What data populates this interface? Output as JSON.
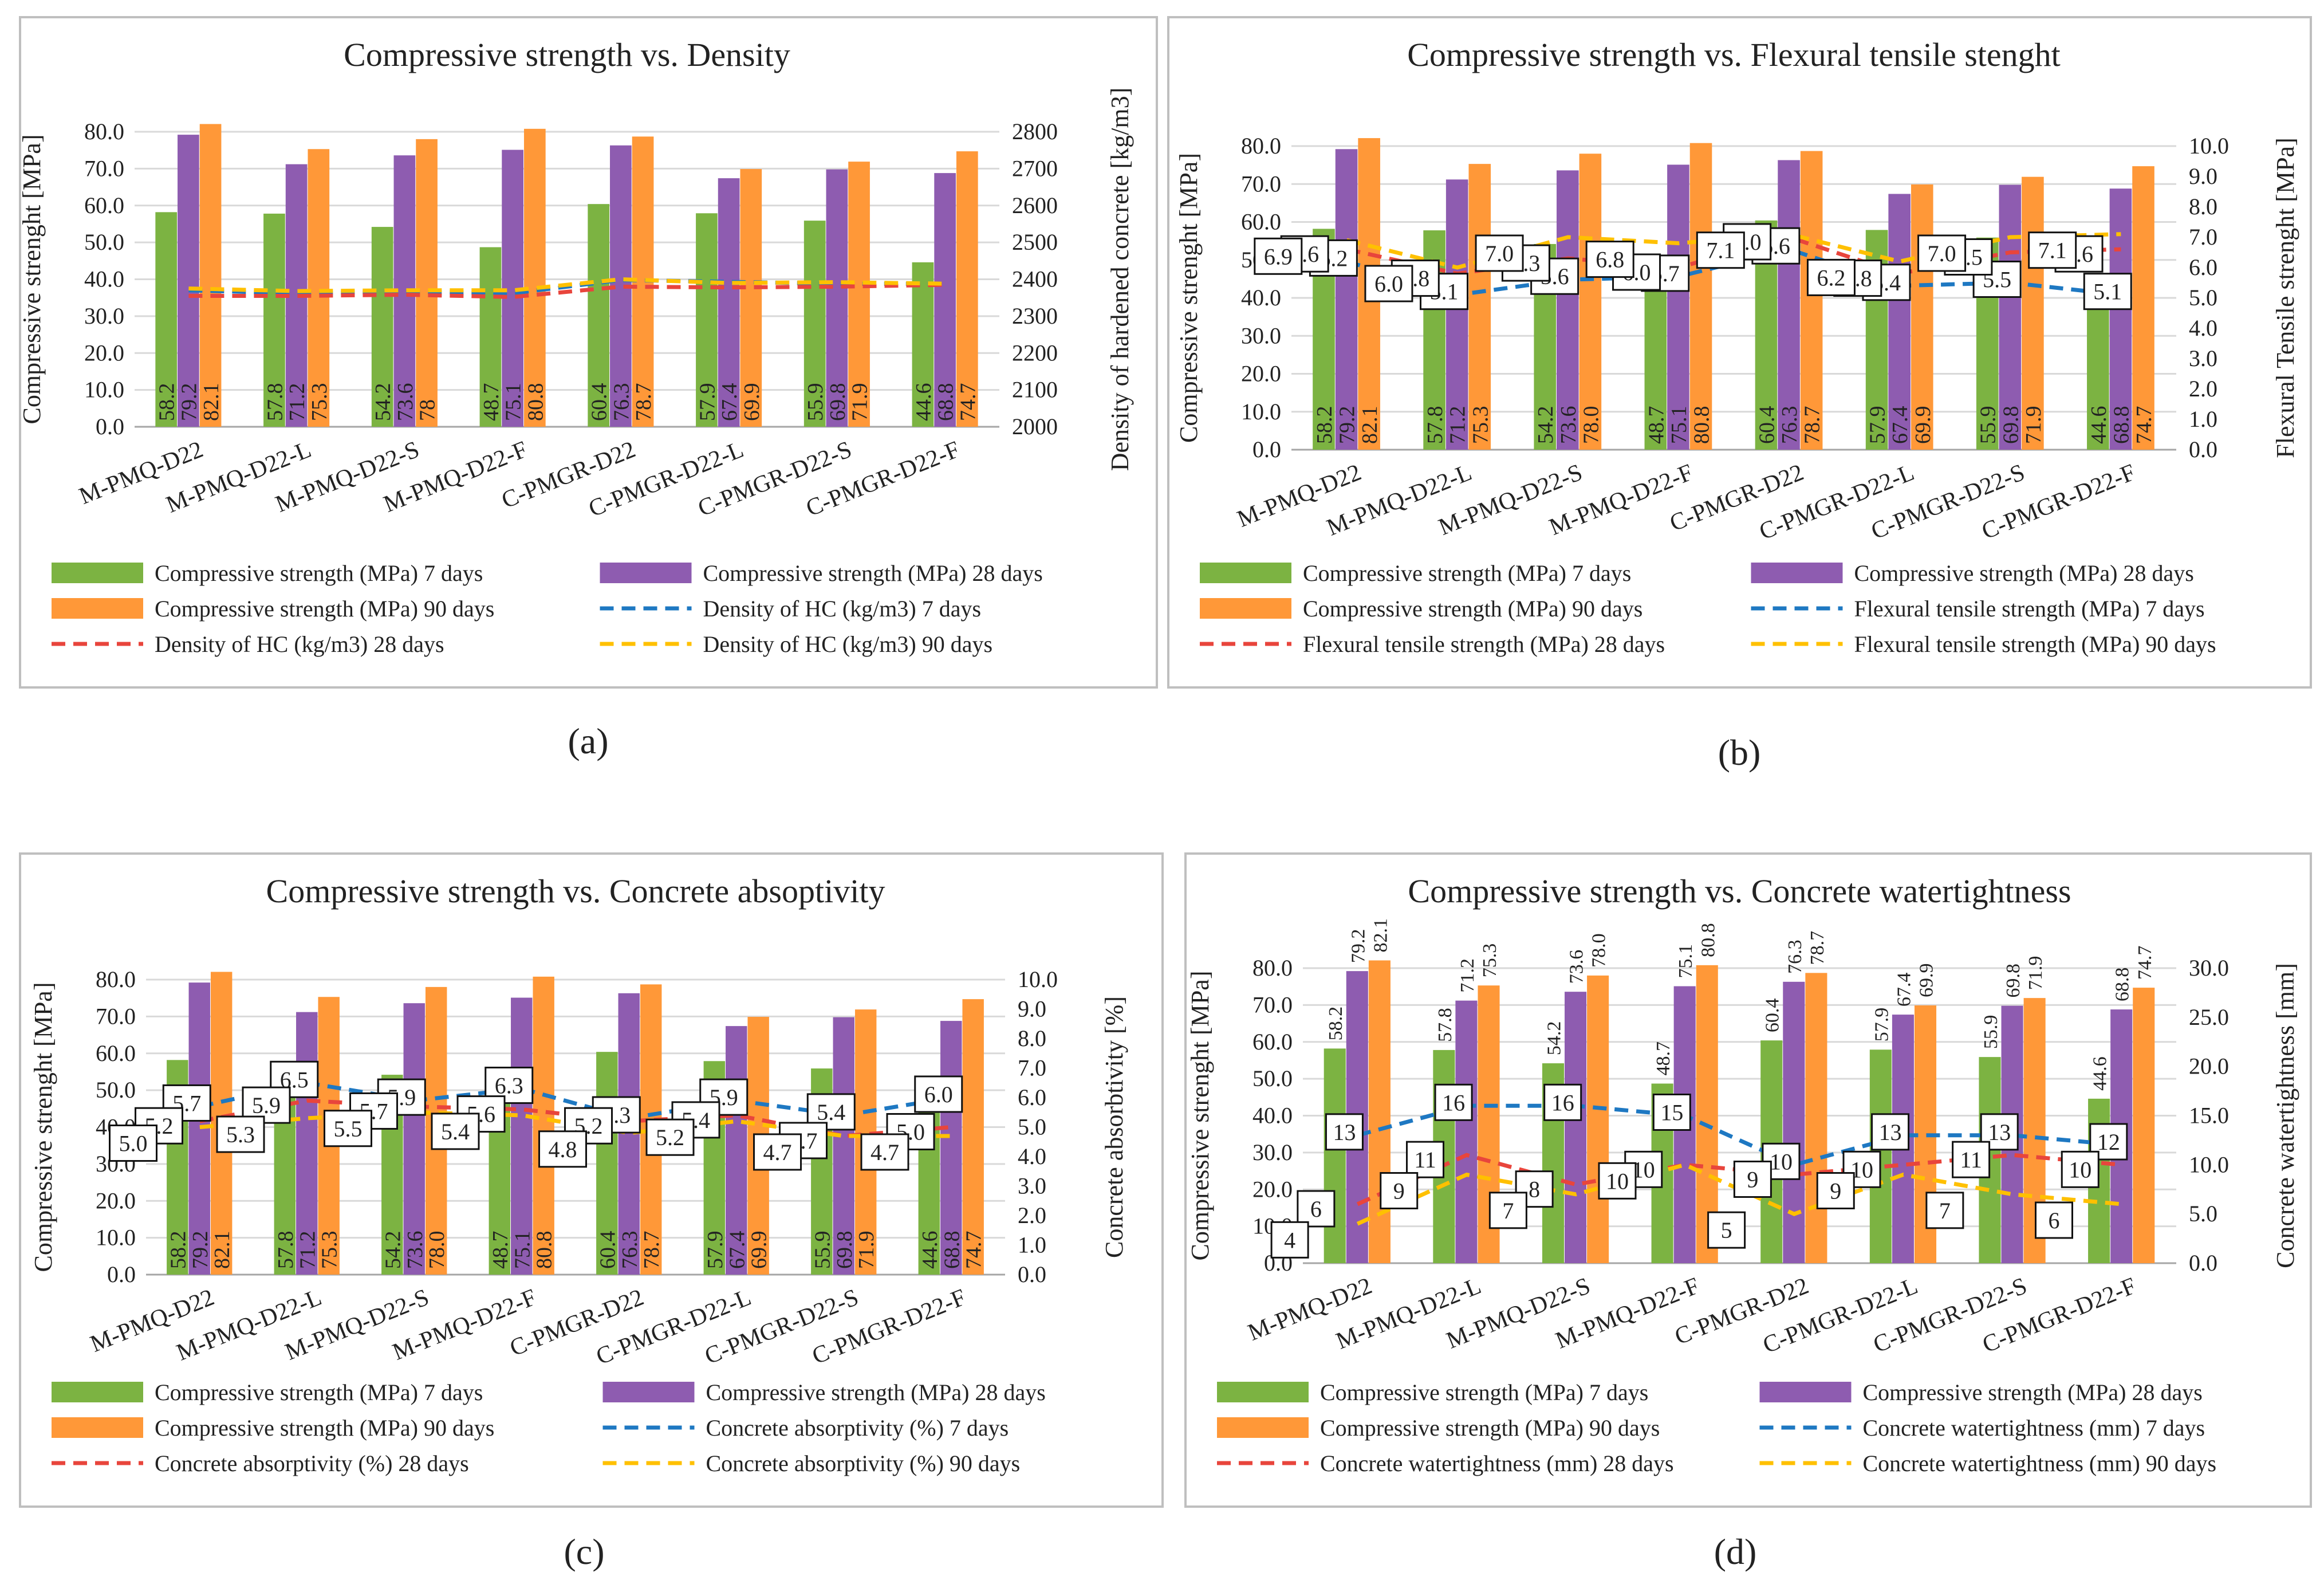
{
  "colors": {
    "green": "#7CB342",
    "purple": "#8E5CB0",
    "orange": "#FF9838",
    "blue": "#1E78C2",
    "red": "#E8453C",
    "yellow": "#FFC000",
    "grid": "#D9D9D9",
    "frame": "#BFBFBF",
    "text": "#222222"
  },
  "chart_data": [
    {
      "panel": "(a)",
      "type": "bar",
      "title": "Compressive strength vs. Density",
      "categories": [
        "M-PMQ-D22",
        "M-PMQ-D22-L",
        "M-PMQ-D22-S",
        "M-PMQ-D22-F",
        "C-PMGR-D22",
        "C-PMGR-D22-L",
        "C-PMGR-D22-S",
        "C-PMGR-D22-F"
      ],
      "ylabel": "Compressive strenght [MPa]",
      "y2label": "Density of hardened concrete [kg/m3]",
      "ylim": [
        0,
        80
      ],
      "ystep": 10,
      "ydecimals": 1,
      "y2lim": [
        2000,
        2800
      ],
      "y2step": 100,
      "y2decimals": 0,
      "bar_series": [
        {
          "name": "Compressive strength (MPa) 7 days",
          "color": "green",
          "values": [
            58.2,
            57.8,
            54.2,
            48.7,
            60.4,
            57.9,
            55.9,
            44.6
          ],
          "labels": [
            "58.2",
            "57.8",
            "54.2",
            "48.7",
            "60.4",
            "57.9",
            "55.9",
            "44.6"
          ]
        },
        {
          "name": "Compressive strength (MPa) 28 days",
          "color": "purple",
          "values": [
            79.2,
            71.2,
            73.6,
            75.1,
            76.3,
            67.4,
            69.8,
            68.8
          ],
          "labels": [
            "79.2",
            "71.2",
            "73.6",
            "75.1",
            "76.3",
            "67.4",
            "69.8",
            "68.8"
          ]
        },
        {
          "name": "Compressive strength (MPa) 90 days",
          "color": "orange",
          "values": [
            82.1,
            75.3,
            78.0,
            80.8,
            78.7,
            69.9,
            71.9,
            74.7
          ],
          "labels": [
            "82.1",
            "75.3",
            "78",
            "80.8",
            "78.7",
            "69.9",
            "71.9",
            "74.7"
          ]
        }
      ],
      "bar_label_mode": "inside",
      "line_series": [
        {
          "name": "Density of HC (kg/m3) 7 days",
          "color": "blue",
          "values": [
            2370,
            2362,
            2366,
            2362,
            2398,
            2393,
            2388,
            2388
          ],
          "labels": []
        },
        {
          "name": "Density of HC (kg/m3) 28 days",
          "color": "red",
          "values": [
            2355,
            2355,
            2358,
            2352,
            2380,
            2378,
            2380,
            2385
          ],
          "labels": []
        },
        {
          "name": "Density of HC (kg/m3) 90 days",
          "color": "yellow",
          "values": [
            2375,
            2368,
            2370,
            2370,
            2400,
            2390,
            2392,
            2388
          ],
          "labels": []
        }
      ],
      "legend_placement": "bottom",
      "grid": true
    },
    {
      "panel": "(b)",
      "type": "bar",
      "title": "Compressive strength vs. Flexural tensile stenght",
      "categories": [
        "M-PMQ-D22",
        "M-PMQ-D22-L",
        "M-PMQ-D22-S",
        "M-PMQ-D22-F",
        "C-PMGR-D22",
        "C-PMGR-D22-L",
        "C-PMGR-D22-S",
        "C-PMGR-D22-F"
      ],
      "ylabel": "Compressive strenght [MPa]",
      "y2label": "Flexural Tensile strenght [MPa]",
      "ylim": [
        0,
        80
      ],
      "ystep": 10,
      "ydecimals": 1,
      "y2lim": [
        0,
        10
      ],
      "y2step": 1,
      "y2decimals": 1,
      "bar_series": [
        {
          "name": "Compressive strength (MPa) 7 days",
          "color": "green",
          "values": [
            58.2,
            57.8,
            54.2,
            48.7,
            60.4,
            57.9,
            55.9,
            44.6
          ],
          "labels": [
            "58.2",
            "57.8",
            "54.2",
            "48.7",
            "60.4",
            "57.9",
            "55.9",
            "44.6"
          ]
        },
        {
          "name": "Compressive strength (MPa) 28 days",
          "color": "purple",
          "values": [
            79.2,
            71.2,
            73.6,
            75.1,
            76.3,
            67.4,
            69.8,
            68.8
          ],
          "labels": [
            "79.2",
            "71.2",
            "73.6",
            "75.1",
            "76.3",
            "67.4",
            "69.8",
            "68.8"
          ]
        },
        {
          "name": "Compressive strength (MPa) 90 days",
          "color": "orange",
          "values": [
            82.1,
            75.3,
            78.0,
            80.8,
            78.7,
            69.9,
            71.9,
            74.7
          ],
          "labels": [
            "82.1",
            "75.3",
            "78.0",
            "80.8",
            "78.7",
            "69.9",
            "71.9",
            "74.7"
          ]
        }
      ],
      "bar_label_mode": "inside",
      "line_series": [
        {
          "name": "Flexural tensile strength (MPa) 7 days",
          "color": "blue",
          "values": [
            6.2,
            5.1,
            5.6,
            5.7,
            6.6,
            5.4,
            5.5,
            5.1
          ],
          "labels": [
            "6.2",
            "5.1",
            "5.6",
            "5.7",
            "6.6",
            "5.4",
            "5.5",
            "5.1"
          ]
        },
        {
          "name": "Flexural tensile strength (MPa) 28 days",
          "color": "red",
          "values": [
            6.6,
            5.8,
            6.3,
            6.0,
            7.0,
            5.8,
            6.5,
            6.6
          ],
          "labels": [
            "6.6",
            "5.8",
            "6.3",
            "6.0",
            "7.0",
            "5.8",
            "6.5",
            "6.6"
          ]
        },
        {
          "name": "Flexural tensile strength (MPa) 90 days",
          "color": "yellow",
          "values": [
            6.9,
            6.0,
            7.0,
            6.8,
            7.1,
            6.2,
            7.0,
            7.1
          ],
          "labels": [
            "6.9",
            "6.0",
            "7.0",
            "6.8",
            "7.1",
            "6.2",
            "7.0",
            "7.1"
          ]
        }
      ],
      "legend_placement": "bottom",
      "grid": true
    },
    {
      "panel": "(c)",
      "type": "bar",
      "title": "Compressive strength vs. Concrete absoptivity",
      "categories": [
        "M-PMQ-D22",
        "M-PMQ-D22-L",
        "M-PMQ-D22-S",
        "M-PMQ-D22-F",
        "C-PMGR-D22",
        "C-PMGR-D22-L",
        "C-PMGR-D22-S",
        "C-PMGR-D22-F"
      ],
      "ylabel": "Compressive strenght [MPa]",
      "y2label": "Concrete absorbtivity [%]",
      "ylim": [
        0,
        80
      ],
      "ystep": 10,
      "ydecimals": 1,
      "y2lim": [
        0,
        10
      ],
      "y2step": 1,
      "y2decimals": 1,
      "bar_series": [
        {
          "name": "Compressive strength (MPa) 7 days",
          "color": "green",
          "values": [
            58.2,
            57.8,
            54.2,
            48.7,
            60.4,
            57.9,
            55.9,
            44.6
          ],
          "labels": [
            "58.2",
            "57.8",
            "54.2",
            "48.7",
            "60.4",
            "57.9",
            "55.9",
            "44.6"
          ]
        },
        {
          "name": "Compressive strength (MPa) 28 days",
          "color": "purple",
          "values": [
            79.2,
            71.2,
            73.6,
            75.1,
            76.3,
            67.4,
            69.8,
            68.8
          ],
          "labels": [
            "79.2",
            "71.2",
            "73.6",
            "75.1",
            "76.3",
            "67.4",
            "69.8",
            "68.8"
          ]
        },
        {
          "name": "Compressive strength (MPa) 90 days",
          "color": "orange",
          "values": [
            82.1,
            75.3,
            78.0,
            80.8,
            78.7,
            69.9,
            71.9,
            74.7
          ],
          "labels": [
            "82.1",
            "75.3",
            "78.0",
            "80.8",
            "78.7",
            "69.9",
            "71.9",
            "74.7"
          ]
        }
      ],
      "bar_label_mode": "inside",
      "line_series": [
        {
          "name": "Concrete absorptivity (%) 7 days",
          "color": "blue",
          "values": [
            5.7,
            6.5,
            5.9,
            6.3,
            5.3,
            5.9,
            5.4,
            6.0
          ],
          "labels": [
            "5.7",
            "6.5",
            "5.9",
            "6.3",
            "5.3",
            "5.9",
            "5.4",
            "6.0"
          ]
        },
        {
          "name": "Concrete absorptivity (%) 28 days",
          "color": "red",
          "values": [
            5.2,
            5.9,
            5.7,
            5.6,
            5.2,
            5.4,
            4.7,
            5.0
          ],
          "labels": [
            "5.2",
            "5.9",
            "5.7",
            "5.6",
            "5.2",
            "5.4",
            "4.7",
            "5.0"
          ]
        },
        {
          "name": "Concrete absorptivity (%) 90 days",
          "color": "yellow",
          "values": [
            5.0,
            5.3,
            5.5,
            5.4,
            4.8,
            5.2,
            4.7,
            4.7
          ],
          "labels": [
            "5.0",
            "5.3",
            "5.5",
            "5.4",
            "4.8",
            "5.2",
            "4.7",
            "4.7"
          ]
        }
      ],
      "legend_placement": "bottom",
      "grid": true
    },
    {
      "panel": "(d)",
      "type": "bar",
      "title": "Compressive strength vs. Concrete watertightness",
      "categories": [
        "M-PMQ-D22",
        "M-PMQ-D22-L",
        "M-PMQ-D22-S",
        "M-PMQ-D22-F",
        "C-PMGR-D22",
        "C-PMGR-D22-L",
        "C-PMGR-D22-S",
        "C-PMGR-D22-F"
      ],
      "ylabel": "Compressive strenght [MPa]",
      "y2label": "Concrete watertightness [mm]",
      "ylim": [
        0,
        80
      ],
      "ystep": 10,
      "ydecimals": 1,
      "y2lim": [
        0,
        30
      ],
      "y2step": 5,
      "y2decimals": 1,
      "bar_series": [
        {
          "name": "Compressive strength (MPa) 7 days",
          "color": "green",
          "values": [
            58.2,
            57.8,
            54.2,
            48.7,
            60.4,
            57.9,
            55.9,
            44.6
          ],
          "labels": [
            "58.2",
            "57.8",
            "54.2",
            "48.7",
            "60.4",
            "57.9",
            "55.9",
            "44.6"
          ]
        },
        {
          "name": "Compressive strength (MPa) 28 days",
          "color": "purple",
          "values": [
            79.2,
            71.2,
            73.6,
            75.1,
            76.3,
            67.4,
            69.8,
            68.8
          ],
          "labels": [
            "79.2",
            "71.2",
            "73.6",
            "75.1",
            "76.3",
            "67.4",
            "69.8",
            "68.8"
          ]
        },
        {
          "name": "Compressive strength (MPa) 90 days",
          "color": "orange",
          "values": [
            82.1,
            75.3,
            78.0,
            80.8,
            78.7,
            69.9,
            71.9,
            74.7
          ],
          "labels": [
            "82.1",
            "75.3",
            "78.0",
            "80.8",
            "78.7",
            "69.9",
            "71.9",
            "74.7"
          ]
        }
      ],
      "bar_label_mode": "above",
      "line_series": [
        {
          "name": "Concrete watertightness (mm) 7 days",
          "color": "blue",
          "values": [
            13,
            16,
            16,
            15,
            10,
            13,
            13,
            12
          ],
          "labels": [
            "13",
            "16",
            "16",
            "15",
            "10",
            "13",
            "13",
            "12"
          ]
        },
        {
          "name": "Concrete watertightness (mm) 28 days",
          "color": "red",
          "values": [
            6,
            11,
            8,
            10,
            9,
            10,
            11,
            10
          ],
          "labels": [
            "6",
            "11",
            "8",
            "10",
            "9",
            "10",
            "11",
            "10"
          ]
        },
        {
          "name": "Concrete watertightness (mm) 90 days",
          "color": "yellow",
          "values": [
            4,
            9,
            7,
            10,
            5,
            9,
            7,
            6
          ],
          "labels": [
            "4",
            "9",
            "7",
            "10",
            "5",
            "9",
            "7",
            "6"
          ]
        }
      ],
      "legend_placement": "bottom",
      "grid": true
    }
  ]
}
